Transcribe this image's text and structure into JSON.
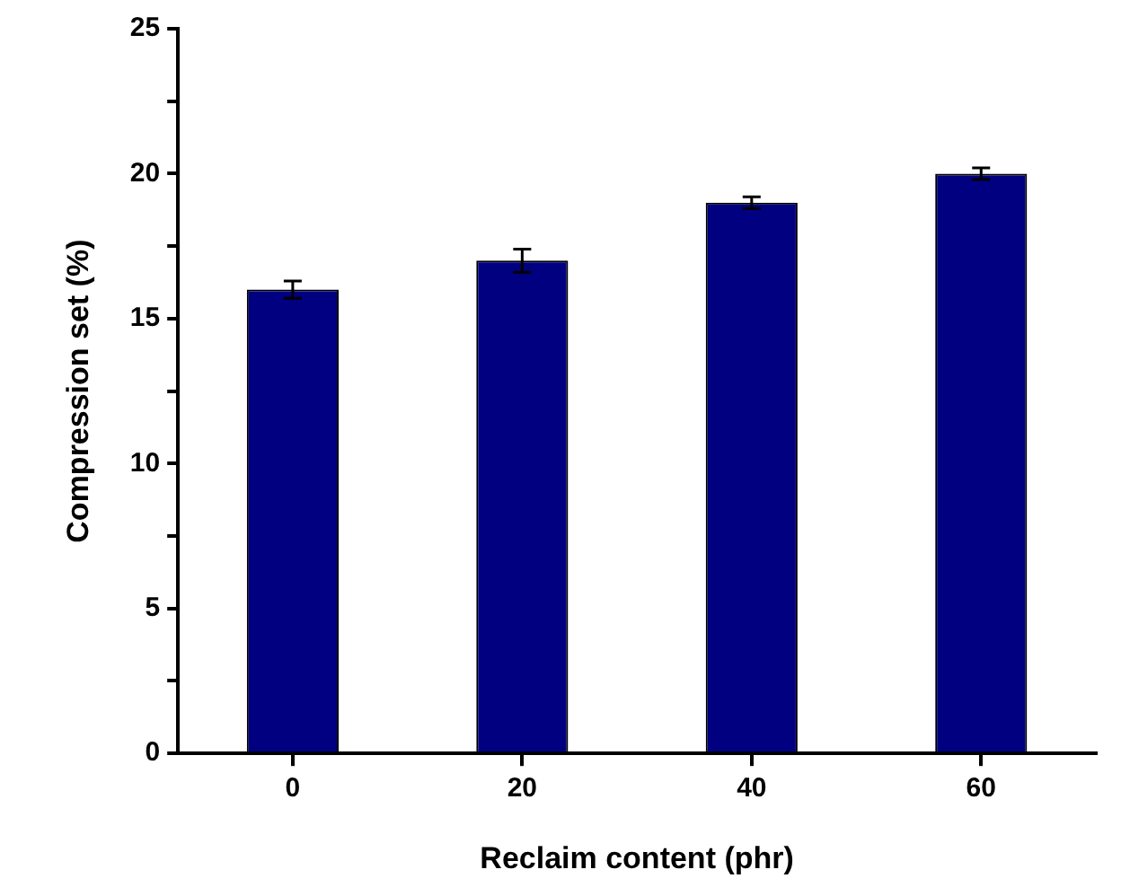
{
  "chart_data": {
    "type": "bar",
    "xlabel": "Reclaim content (phr)",
    "ylabel": "Compression set (%)",
    "categories": [
      "0",
      "20",
      "40",
      "60"
    ],
    "values": [
      16,
      17,
      19,
      20
    ],
    "errors": [
      0.3,
      0.4,
      0.2,
      0.2
    ],
    "color": "#000080",
    "ylim": [
      0,
      25
    ],
    "yticks": [
      0,
      {
        "value": 2.5,
        "label": null
      },
      5,
      {
        "value": 7.5,
        "label": null
      },
      10,
      {
        "value": 12.5,
        "label": null
      },
      15,
      {
        "value": 17.5,
        "label": null
      },
      20,
      {
        "value": 22.5,
        "label": null
      },
      25
    ],
    "grid": false,
    "legend": false
  }
}
